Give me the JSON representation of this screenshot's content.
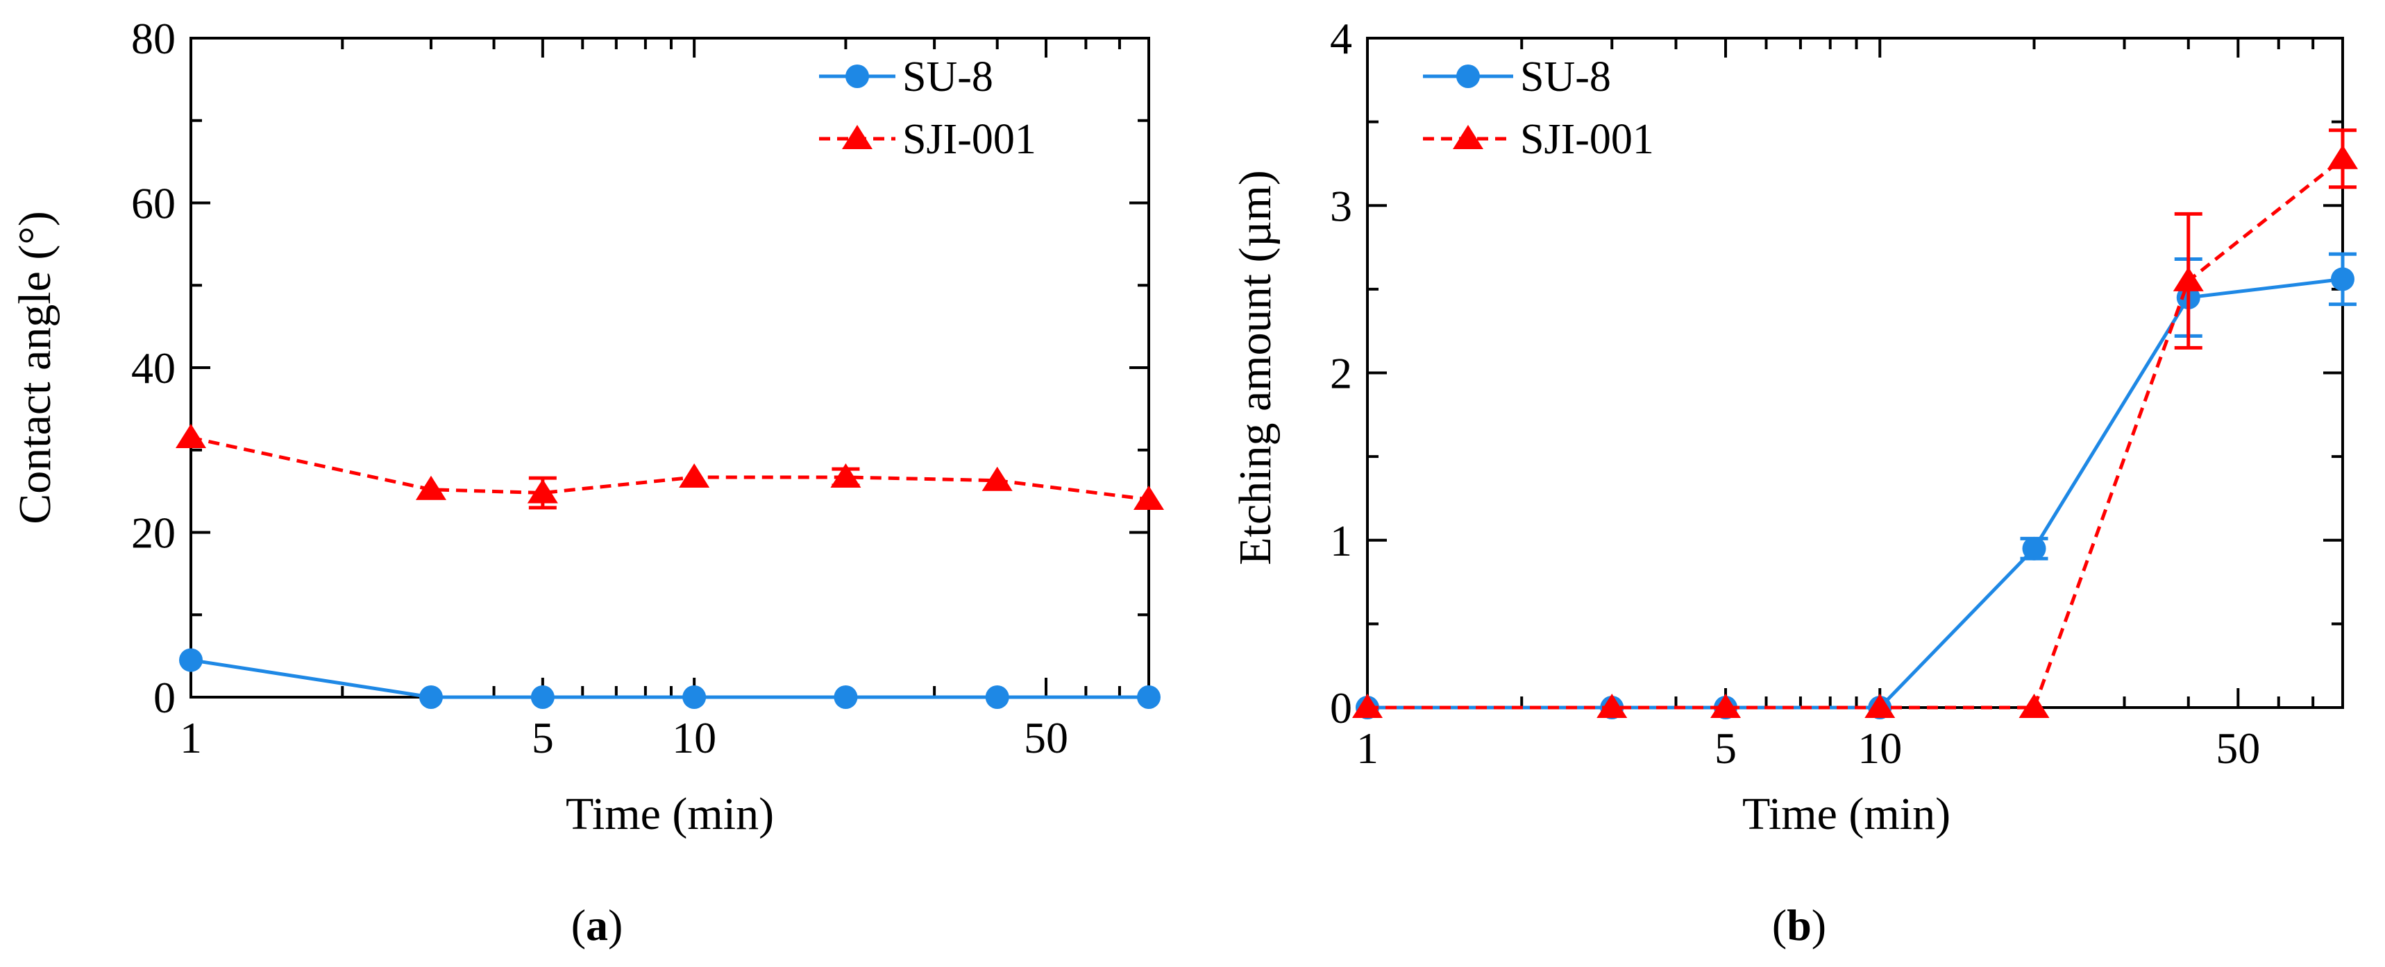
{
  "chart_data": [
    {
      "type": "line",
      "panel_label": "a",
      "xlabel": "Time (min)",
      "ylabel": "Contact angle (°)",
      "x_scale": "log",
      "xlim": [
        1,
        80
      ],
      "ylim": [
        0,
        80
      ],
      "x_tick_labels": [
        "1",
        "5",
        "10",
        "50"
      ],
      "x_tick_values": [
        1,
        5,
        10,
        50
      ],
      "y_ticks": [
        0,
        20,
        40,
        60,
        80
      ],
      "legend_position": "top-right",
      "series": [
        {
          "name": "SU-8",
          "color": "#1E88E5",
          "style": "solid",
          "marker": "circle",
          "x": [
            1,
            3,
            5,
            10,
            20,
            40,
            80
          ],
          "y": [
            4.5,
            0,
            0,
            0,
            0,
            0,
            0
          ],
          "err": [
            0,
            0,
            0,
            0,
            0,
            0,
            0
          ]
        },
        {
          "name": "SJI-001",
          "color": "#FF0000",
          "style": "dashed",
          "marker": "triangle",
          "x": [
            1,
            3,
            5,
            10,
            20,
            40,
            80
          ],
          "y": [
            31.5,
            25.2,
            24.8,
            26.7,
            26.7,
            26.3,
            24.0
          ],
          "err": [
            0,
            0,
            1.8,
            0,
            1.0,
            0,
            0
          ]
        }
      ]
    },
    {
      "type": "line",
      "panel_label": "b",
      "xlabel": "Time (min)",
      "ylabel": "Etching amount (µm)",
      "x_scale": "log",
      "xlim": [
        1,
        80
      ],
      "ylim": [
        0,
        4
      ],
      "x_tick_labels": [
        "1",
        "5",
        "10",
        "50"
      ],
      "x_tick_values": [
        1,
        5,
        10,
        50
      ],
      "y_ticks": [
        0,
        1,
        2,
        3,
        4
      ],
      "legend_position": "top-left",
      "series": [
        {
          "name": "SU-8",
          "color": "#1E88E5",
          "style": "solid",
          "marker": "circle",
          "x": [
            1,
            3,
            5,
            10,
            20,
            40,
            80
          ],
          "y": [
            0,
            0,
            0,
            0,
            0.95,
            2.45,
            2.56
          ],
          "err": [
            0,
            0,
            0,
            0,
            0.06,
            0.23,
            0.15
          ]
        },
        {
          "name": "SJI-001",
          "color": "#FF0000",
          "style": "dashed",
          "marker": "triangle",
          "x": [
            1,
            3,
            5,
            10,
            20,
            40,
            80
          ],
          "y": [
            0,
            0,
            0,
            0,
            0,
            2.55,
            3.28
          ],
          "err": [
            0,
            0,
            0,
            0,
            0,
            0.4,
            0.17
          ]
        }
      ]
    }
  ]
}
